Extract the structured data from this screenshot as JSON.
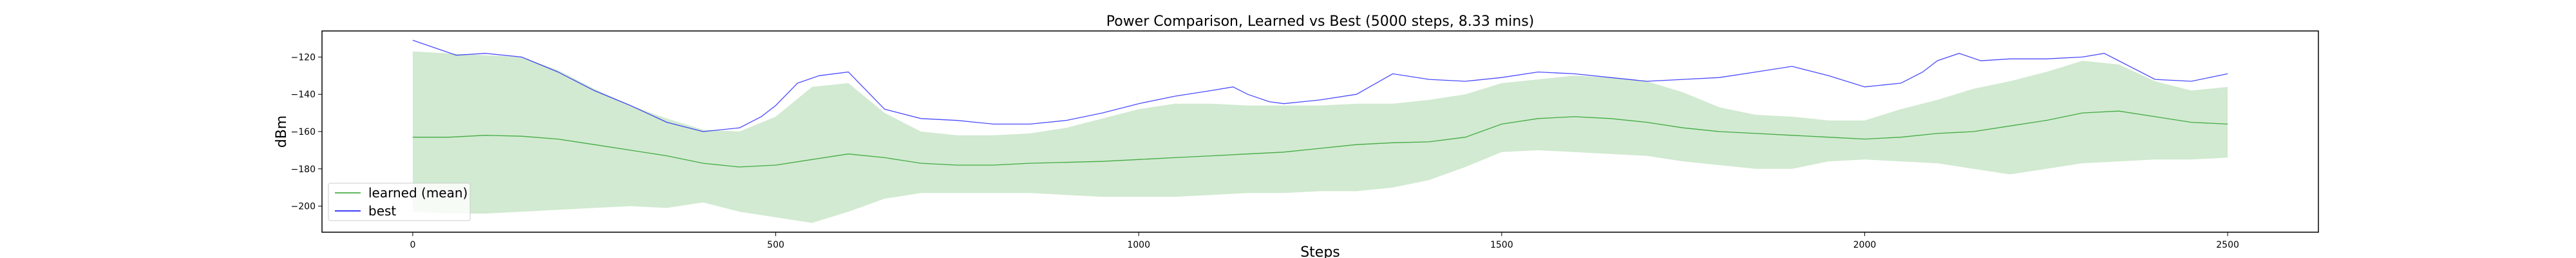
{
  "chart_data": {
    "type": "line",
    "title": "Power Comparison, Learned vs Best (5000 steps, 8.33 mins)",
    "xlabel": "Steps",
    "ylabel": "dBm",
    "xlim": [
      -125,
      2625
    ],
    "ylim": [
      -214,
      -106
    ],
    "xticks": [
      0,
      500,
      1000,
      1500,
      2000,
      2500
    ],
    "xtick_labels": [
      "0",
      "500",
      "1000",
      "1500",
      "2000",
      "2500"
    ],
    "yticks": [
      -120,
      -140,
      -160,
      -180,
      -200
    ],
    "ytick_labels": [
      "−120",
      "−140",
      "−160",
      "−180",
      "−200"
    ],
    "grid": false,
    "legend": {
      "placement": "lower-left",
      "entries": [
        {
          "label": "learned (mean)",
          "color": "#2ca02c"
        },
        {
          "label": "best",
          "color": "#0000ff"
        }
      ]
    },
    "series": [
      {
        "name": "learned (mean)",
        "color": "#2ca02c",
        "x": [
          0,
          50,
          100,
          150,
          200,
          250,
          300,
          350,
          400,
          450,
          500,
          550,
          600,
          650,
          700,
          750,
          800,
          850,
          900,
          950,
          1000,
          1050,
          1100,
          1150,
          1200,
          1250,
          1300,
          1350,
          1400,
          1450,
          1500,
          1550,
          1600,
          1650,
          1700,
          1750,
          1800,
          1850,
          1900,
          1950,
          2000,
          2050,
          2100,
          2150,
          2200,
          2250,
          2300,
          2350,
          2400,
          2450,
          2500
        ],
        "y": [
          -163,
          -163,
          -162,
          -162.5,
          -164,
          -167,
          -170,
          -173,
          -177,
          -179,
          -178,
          -175,
          -172,
          -174,
          -177,
          -178,
          -178,
          -177,
          -176.5,
          -176,
          -175,
          -174,
          -173,
          -172,
          -171,
          -169,
          -167,
          -166,
          -165.5,
          -163,
          -156,
          -153,
          -152,
          -153,
          -155,
          -158,
          -160,
          -161,
          -162,
          -163,
          -164,
          -163,
          -161,
          -160,
          -157,
          -154,
          -150,
          -149,
          -152,
          -155,
          -156
        ]
      },
      {
        "name": "best",
        "color": "#0000ff",
        "x": [
          0,
          30,
          60,
          100,
          150,
          200,
          250,
          300,
          350,
          400,
          450,
          480,
          500,
          530,
          560,
          600,
          650,
          700,
          750,
          800,
          850,
          900,
          950,
          1000,
          1050,
          1100,
          1130,
          1150,
          1180,
          1200,
          1250,
          1300,
          1350,
          1400,
          1450,
          1500,
          1550,
          1600,
          1650,
          1700,
          1750,
          1800,
          1850,
          1900,
          1950,
          2000,
          2050,
          2080,
          2100,
          2130,
          2160,
          2200,
          2250,
          2300,
          2330,
          2360,
          2400,
          2450,
          2500
        ],
        "y": [
          -111,
          -115,
          -119,
          -118,
          -120,
          -128,
          -138,
          -146,
          -155,
          -160,
          -158,
          -152,
          -146,
          -134,
          -130,
          -128,
          -148,
          -153,
          -154,
          -156,
          -156,
          -154,
          -150,
          -145,
          -141,
          -138,
          -136,
          -140,
          -144,
          -145,
          -143,
          -140,
          -129,
          -132,
          -133,
          -131,
          -128,
          -129,
          -131,
          -133,
          -132,
          -131,
          -128,
          -125,
          -130,
          -136,
          -134,
          -128,
          -122,
          -118,
          -122,
          -121,
          -121,
          -120,
          -118,
          -124,
          -132,
          -133,
          -129
        ]
      }
    ],
    "band": {
      "color": "#2ca02c",
      "x": [
        0,
        50,
        100,
        150,
        200,
        250,
        300,
        350,
        400,
        450,
        500,
        550,
        600,
        650,
        700,
        750,
        800,
        850,
        900,
        950,
        1000,
        1050,
        1100,
        1150,
        1200,
        1250,
        1300,
        1350,
        1400,
        1450,
        1500,
        1550,
        1600,
        1650,
        1700,
        1750,
        1800,
        1850,
        1900,
        1950,
        2000,
        2050,
        2100,
        2150,
        2200,
        2250,
        2300,
        2350,
        2400,
        2450,
        2500
      ],
      "upper": [
        -117,
        -118,
        -119,
        -120,
        -127,
        -137,
        -146,
        -153,
        -159,
        -160,
        -152,
        -136,
        -134,
        -150,
        -160,
        -162,
        -162,
        -161,
        -158,
        -153,
        -148,
        -145,
        -145,
        -146,
        -146,
        -146,
        -145,
        -145,
        -143,
        -140,
        -134,
        -132,
        -130,
        -131,
        -133,
        -139,
        -147,
        -151,
        -152,
        -154,
        -154,
        -148,
        -143,
        -137,
        -133,
        -128,
        -122,
        -124,
        -133,
        -138,
        -136
      ],
      "lower": [
        -203,
        -204,
        -204,
        -203,
        -202,
        -201,
        -200,
        -201,
        -198,
        -203,
        -206,
        -209,
        -203,
        -196,
        -193,
        -193,
        -193,
        -193,
        -194,
        -195,
        -195,
        -195,
        -194,
        -193,
        -193,
        -192,
        -192,
        -190,
        -186,
        -179,
        -171,
        -170,
        -171,
        -172,
        -173,
        -176,
        -178,
        -180,
        -180,
        -176,
        -175,
        -176,
        -177,
        -180,
        -183,
        -180,
        -177,
        -176,
        -175,
        -175,
        -174
      ]
    }
  }
}
